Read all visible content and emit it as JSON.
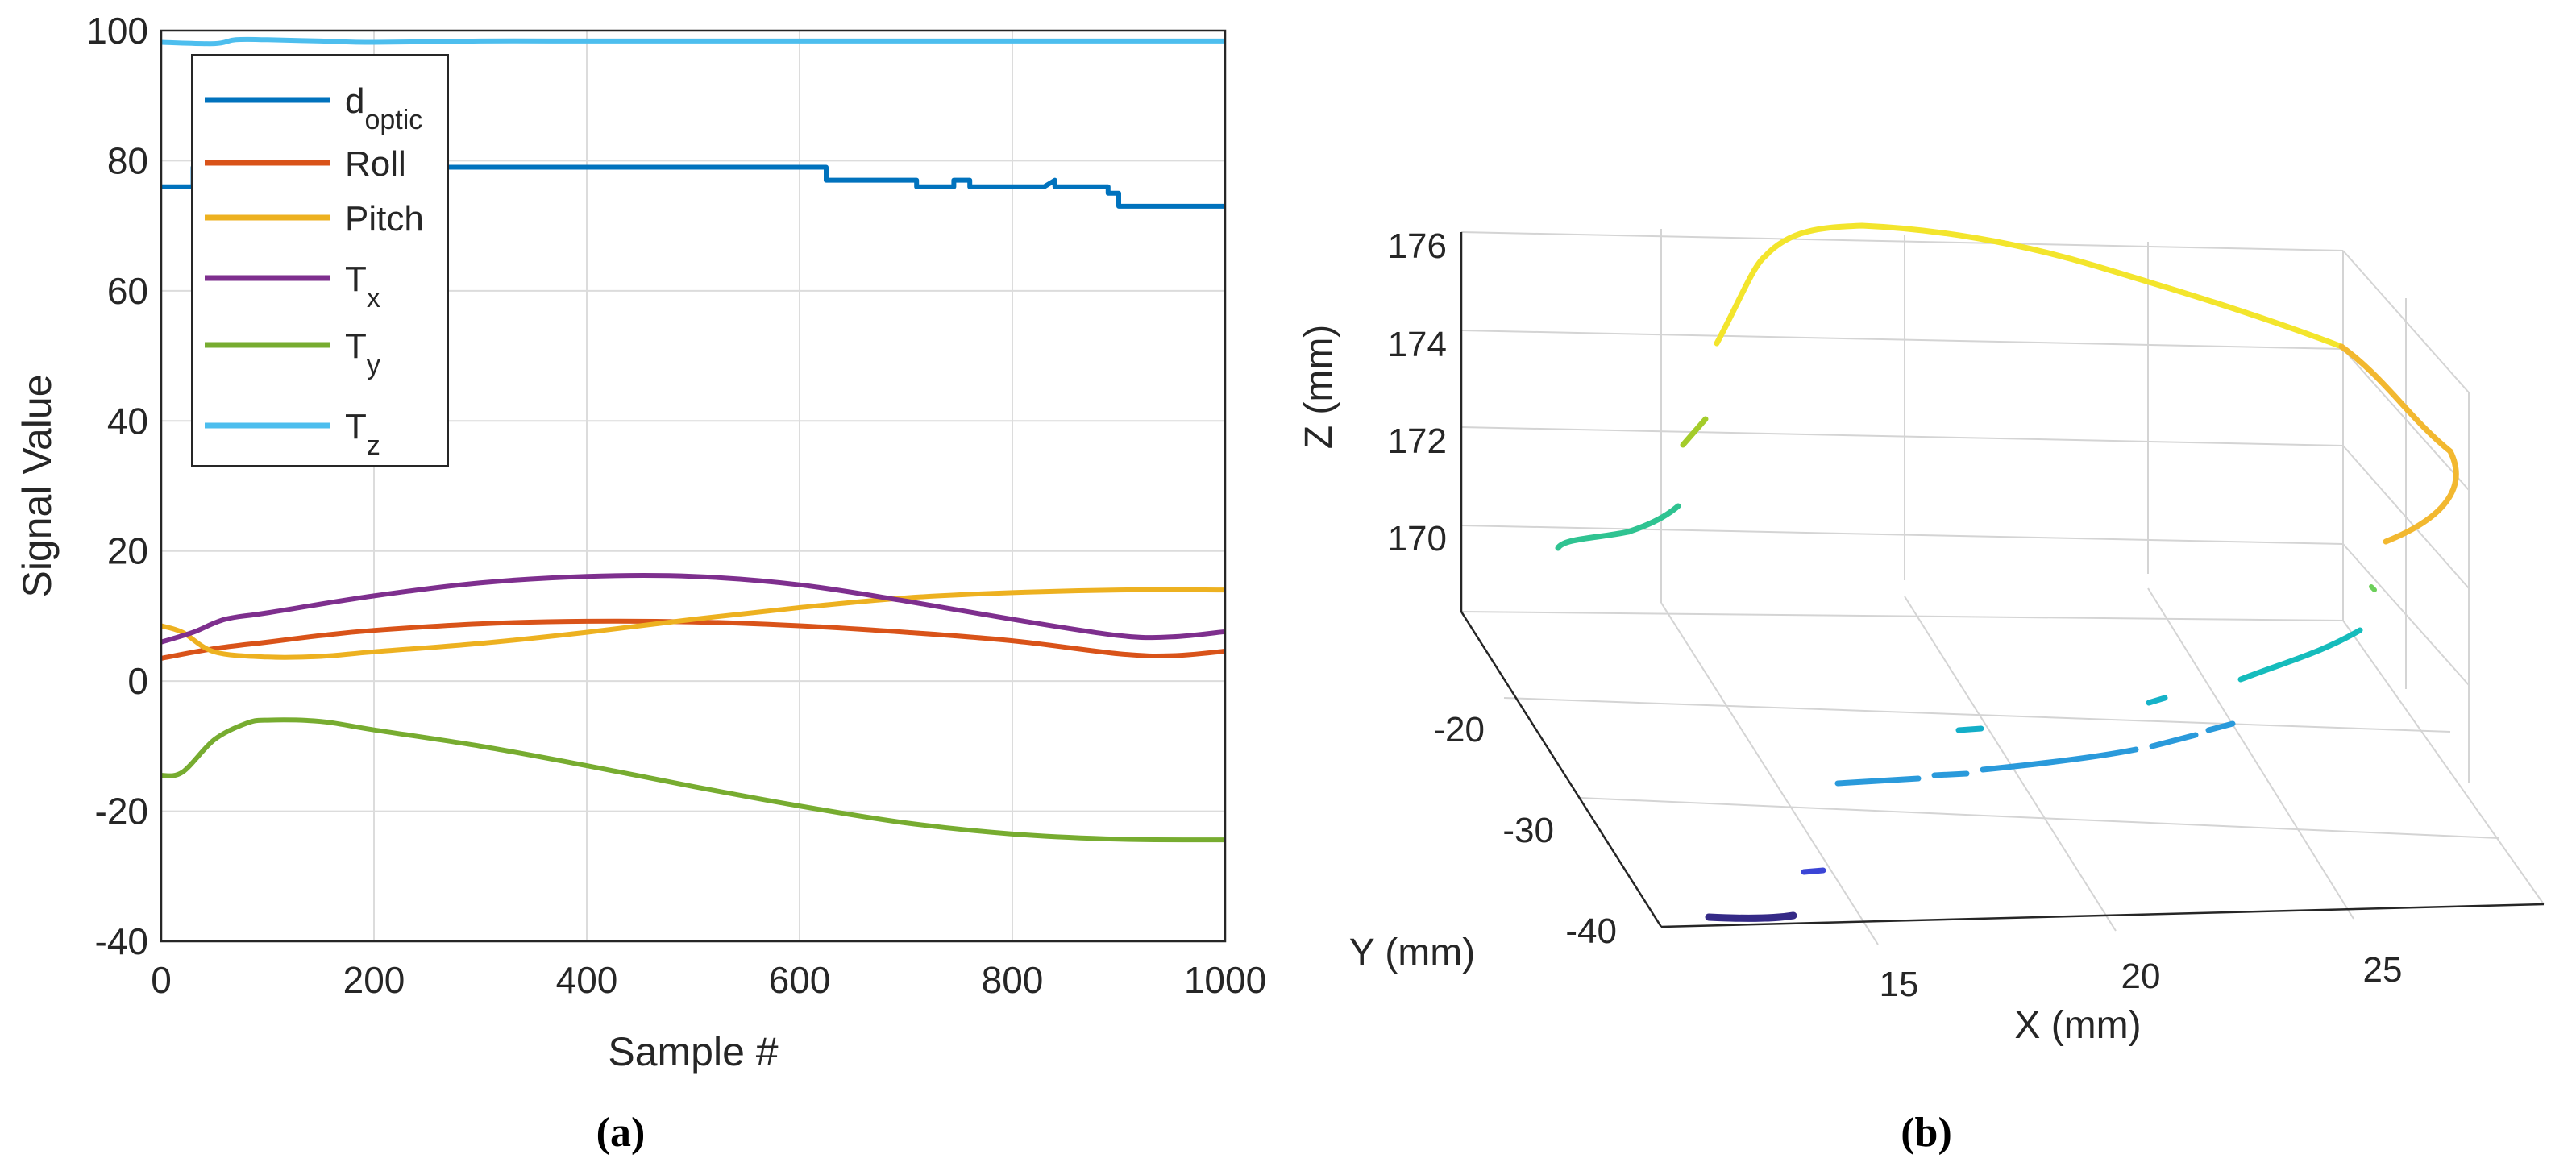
{
  "chart_data": [
    {
      "type": "line",
      "panel_label": "(a)",
      "xlabel": "Sample #",
      "ylabel": "Signal Value",
      "xlim": [
        0,
        1000
      ],
      "ylim": [
        -40,
        100
      ],
      "xticks": [
        0,
        200,
        400,
        600,
        800,
        1000
      ],
      "yticks": [
        -40,
        -20,
        0,
        20,
        40,
        60,
        80,
        100
      ],
      "grid": true,
      "legend_position": "top-left",
      "series": [
        {
          "key": "d_optic",
          "name_main": "d",
          "name_sub": "optic",
          "color": "#0072bd",
          "x": [
            0,
            30,
            30,
            600,
            625,
            625,
            710,
            710,
            745,
            745,
            760,
            760,
            830,
            830,
            840,
            840,
            890,
            890,
            900,
            900,
            1000
          ],
          "y": [
            76,
            76,
            79,
            79,
            79,
            77,
            77,
            76,
            76,
            77,
            77,
            76,
            76,
            76,
            77,
            76,
            76,
            75,
            75,
            73,
            73
          ]
        },
        {
          "key": "roll",
          "name_main": "Roll",
          "name_sub": "",
          "color": "#d95319",
          "x": [
            0,
            50,
            100,
            150,
            200,
            300,
            400,
            500,
            600,
            700,
            800,
            900,
            950,
            1000
          ],
          "y": [
            3.5,
            5,
            6,
            7,
            7.8,
            8.8,
            9.2,
            9.1,
            8.5,
            7.5,
            6.2,
            4.2,
            3.9,
            4.6
          ]
        },
        {
          "key": "pitch",
          "name_main": "Pitch",
          "name_sub": "",
          "color": "#edb120",
          "x": [
            0,
            20,
            50,
            100,
            150,
            200,
            300,
            400,
            500,
            600,
            700,
            800,
            900,
            1000
          ],
          "y": [
            8.5,
            7.5,
            4.5,
            3.7,
            3.8,
            4.5,
            5.8,
            7.5,
            9.5,
            11.3,
            12.8,
            13.6,
            14,
            14
          ]
        },
        {
          "key": "tx",
          "name_main": "T",
          "name_sub": "x",
          "color": "#7e2f8e",
          "x": [
            0,
            30,
            60,
            100,
            200,
            300,
            400,
            500,
            600,
            700,
            800,
            900,
            950,
            1000
          ],
          "y": [
            6,
            7.5,
            9.5,
            10.5,
            13.1,
            15.1,
            16.1,
            16.1,
            14.8,
            12.3,
            9.5,
            7,
            6.8,
            7.6
          ]
        },
        {
          "key": "ty",
          "name_main": "T",
          "name_sub": "y",
          "color": "#77ac30",
          "x": [
            0,
            20,
            50,
            80,
            100,
            150,
            200,
            300,
            400,
            500,
            600,
            700,
            800,
            900,
            1000
          ],
          "y": [
            -14.5,
            -14,
            -9,
            -6.5,
            -6,
            -6.2,
            -7.5,
            -10,
            -13,
            -16.2,
            -19.2,
            -21.8,
            -23.5,
            -24.3,
            -24.4
          ]
        },
        {
          "key": "tz",
          "name_main": "T",
          "name_sub": "z",
          "color": "#4dbeee",
          "x": [
            0,
            50,
            70,
            100,
            150,
            200,
            300,
            400,
            500,
            600,
            700,
            800,
            900,
            1000
          ],
          "y": [
            98.2,
            98,
            98.6,
            98.6,
            98.4,
            98.2,
            98.4,
            98.4,
            98.4,
            98.4,
            98.4,
            98.4,
            98.4,
            98.4
          ]
        }
      ]
    },
    {
      "type": "line3d",
      "panel_label": "(b)",
      "xlabel": "X (mm)",
      "ylabel": "Y (mm)",
      "zlabel": "Z (mm)",
      "xticks": [
        15,
        20,
        25
      ],
      "yticks": [
        -20,
        -30,
        -40
      ],
      "zticks": [
        170,
        172,
        174,
        176
      ],
      "grid": true,
      "colormap": "parula"
    }
  ]
}
